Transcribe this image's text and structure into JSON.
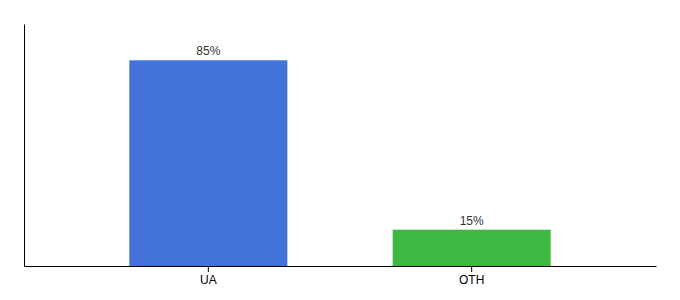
{
  "chart_data": {
    "type": "bar",
    "categories": [
      "UA",
      "OTH"
    ],
    "values": [
      85,
      15
    ],
    "colors": [
      "#4472db",
      "#3cb843"
    ],
    "value_labels": [
      "85%",
      "15%"
    ],
    "data_labels": true,
    "ylim": [
      0,
      100
    ],
    "tick_labels": "x"
  }
}
